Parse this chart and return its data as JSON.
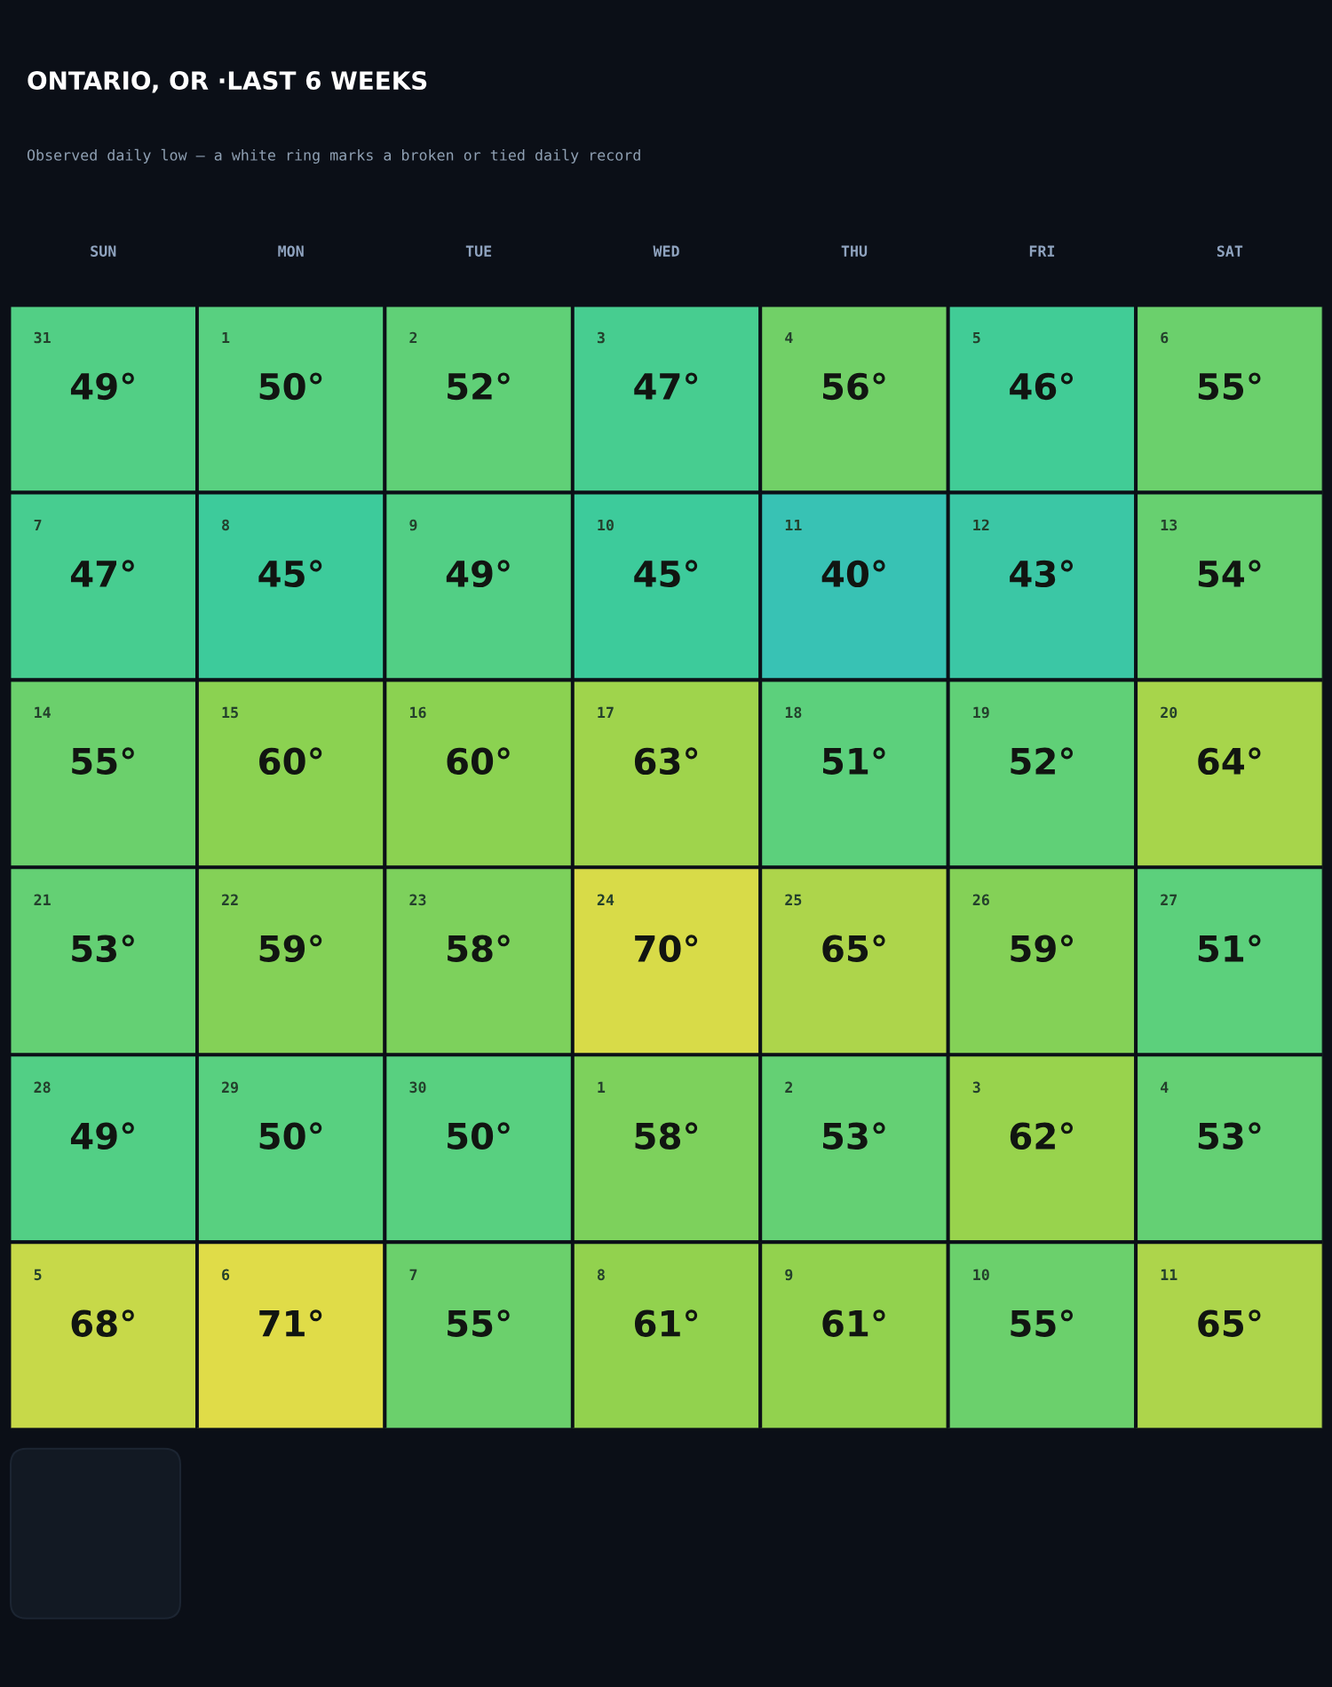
{
  "chart_data": {
    "type": "heatmap",
    "title": "ONTARIO, OR ·LAST 6 WEEKS",
    "subtitle": "Observed daily low — a white ring marks a broken or tied daily record",
    "categories": [
      "SUN",
      "MON",
      "TUE",
      "WED",
      "THU",
      "FRI",
      "SAT"
    ],
    "y_categories": [
      null,
      null,
      null,
      null,
      null,
      null
    ],
    "cells": [
      [
        49,
        50,
        52,
        47,
        56,
        46,
        55
      ],
      [
        47,
        45,
        49,
        45,
        40,
        43,
        54
      ],
      [
        55,
        60,
        60,
        63,
        51,
        52,
        64
      ],
      [
        53,
        59,
        58,
        70,
        65,
        59,
        51
      ],
      [
        49,
        50,
        50,
        58,
        53,
        62,
        53
      ],
      [
        68,
        71,
        55,
        61,
        61,
        55,
        65
      ]
    ],
    "cell_labels": [
      [
        "49°",
        "50°",
        "52°",
        "47°",
        "56°",
        "46°",
        "55°"
      ],
      [
        "47°",
        "45°",
        "49°",
        "45°",
        "40°",
        "43°",
        "54°"
      ],
      [
        "55°",
        "60°",
        "60°",
        "63°",
        "51°",
        "52°",
        "64°"
      ],
      [
        "53°",
        "59°",
        "58°",
        "70°",
        "65°",
        "59°",
        "51°"
      ],
      [
        "49°",
        "50°",
        "50°",
        "58°",
        "53°",
        "62°",
        "53°"
      ],
      [
        "68°",
        "71°",
        "55°",
        "61°",
        "61°",
        "55°",
        "65°"
      ]
    ],
    "annotations": [
      "31",
      "1",
      "2",
      "3",
      "4",
      "5",
      "6",
      "7",
      "8",
      "9",
      "10",
      "11",
      "12",
      "13",
      "14",
      "15",
      "16",
      "17",
      "18",
      "19",
      "20",
      "21",
      "22",
      "23",
      "24",
      "25",
      "26",
      "27",
      "28",
      "29",
      "30",
      "1",
      "2",
      "3",
      "4",
      "5",
      "6",
      "7",
      "8",
      "9",
      "10",
      "11"
    ]
  }
}
